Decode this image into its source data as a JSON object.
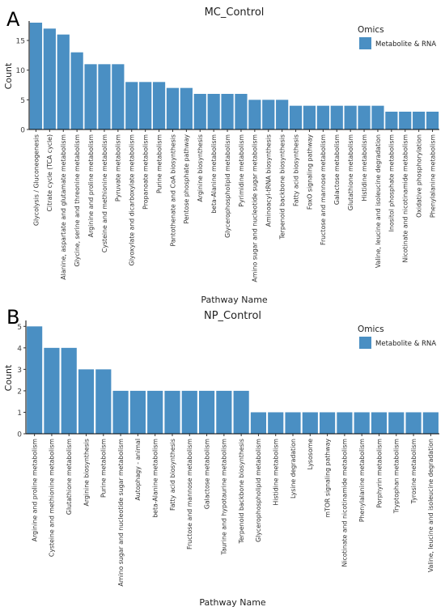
{
  "chart_data": [
    {
      "type": "bar",
      "panel": "A",
      "title": "MC_Control",
      "xlabel": "Pathway Name",
      "ylabel": "Count",
      "ylim": [
        0,
        18
      ],
      "yticks": [
        0,
        5,
        10,
        15
      ],
      "legend_title": "Omics",
      "legend_placement": "top-right",
      "grid": false,
      "categories": [
        "Glycolysis / Gluconeogenesis",
        "Citrate cycle (TCA cycle)",
        "Alanine, aspartate and glutamate metabolism",
        "Glycine, serine and threonine metabolism",
        "Arginine and proline metabolism",
        "Cysteine and methionine metabolism",
        "Pyruvate metabolism",
        "Glyoxylate and dicarboxylate metabolism",
        "Propanoate metabolism",
        "Purine metabolism",
        "Pantothenate and CoA biosynthesis",
        "Pentose phosphate pathway",
        "Arginine biosynthesis",
        "beta-Alanine metabolism",
        "Glycerophospholipid metabolism",
        "Pyrimidine metabolism",
        "Amino sugar and nucleotide sugar metabolism",
        "Aminoacyl-tRNA biosynthesis",
        "Terpenoid backbone biosynthesis",
        "Fatty acid biosynthesis",
        "FoxO signaling pathway",
        "Fructose and mannose metabolism",
        "Galactose metabolism",
        "Glutathione metabolism",
        "Histidine metabolism",
        "Valine, leucine and isoleucine degradation",
        "Inositol phosphate metabolism",
        "Nicotinate and nicotinamide metabolism",
        "Oxidative phosphorylation",
        "Phenylalanine metabolism"
      ],
      "series": [
        {
          "name": "Metabolite & RNA",
          "color": "#4a8fc3",
          "values": [
            18,
            17,
            16,
            13,
            11,
            11,
            11,
            8,
            8,
            8,
            7,
            7,
            6,
            6,
            6,
            6,
            5,
            5,
            5,
            4,
            4,
            4,
            4,
            4,
            4,
            4,
            3,
            3,
            3,
            3
          ]
        }
      ]
    },
    {
      "type": "bar",
      "panel": "B",
      "title": "NP_Control",
      "xlabel": "Pathway Name",
      "ylabel": "Count",
      "ylim": [
        0,
        5.2
      ],
      "yticks": [
        0,
        1,
        2,
        3,
        4,
        5
      ],
      "legend_title": "Omics",
      "legend_placement": "top-right",
      "grid": false,
      "categories": [
        "Arginine and proline metabolism",
        "Cysteine and methionine metabolism",
        "Glutathione metabolism",
        "Arginine biosynthesis",
        "Purine metabolism",
        "Amino sugar and nucleotide sugar metabolism",
        "Autophagy - animal",
        "beta-Alanine metabolism",
        "Fatty acid biosynthesis",
        "Fructose and mannose metabolism",
        "Galactose metabolism",
        "Taurine and hypotaurine metabolism",
        "Terpenoid backbone biosynthesis",
        "Glycerophospholipid metabolism",
        "Histidine metabolism",
        "Lysine degradation",
        "Lysosome",
        "mTOR signaling pathway",
        "Nicotinate and nicotinamide metabolism",
        "Phenylalanine metabolism",
        "Porphyrin metabolism",
        "Tryptophan metabolism",
        "Tyrosine metabolism",
        "Valine, leucine and isoleucine degradation"
      ],
      "series": [
        {
          "name": "Metabolite & RNA",
          "color": "#4a8fc3",
          "values": [
            5,
            4,
            4,
            3,
            3,
            2,
            2,
            2,
            2,
            2,
            2,
            2,
            2,
            1,
            1,
            1,
            1,
            1,
            1,
            1,
            1,
            1,
            1,
            1
          ]
        }
      ]
    }
  ]
}
